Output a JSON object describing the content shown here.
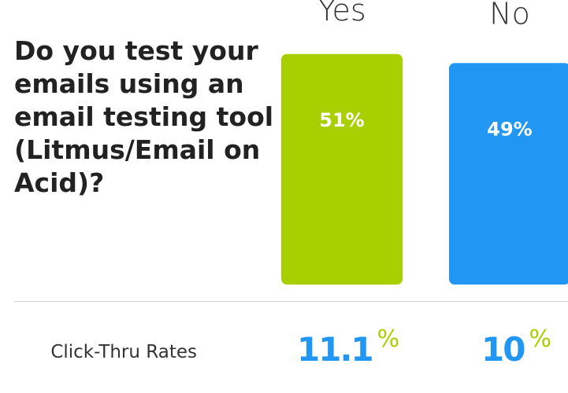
{
  "question": "Do you test your emails using an email testing tool (Litmus/Email on Acid)?",
  "colors": {
    "yes": "#a8d000",
    "no": "#2196f3",
    "question_text": "#222222",
    "metric_value": "#2196f3"
  },
  "chart_data": {
    "type": "bar",
    "categories": [
      "Yes",
      "No"
    ],
    "values": [
      51,
      49
    ],
    "value_labels": [
      "51%",
      "49%"
    ],
    "colors": [
      "#a8d000",
      "#2196f3"
    ],
    "ylim": [
      0,
      100
    ],
    "title": "",
    "xlabel": "",
    "ylabel": "",
    "grid": false
  },
  "metrics": {
    "label": "Click-Thru Rates",
    "items": [
      {
        "category": "Yes",
        "value": "11.1",
        "unit": "%",
        "unit_color": "#a8d000"
      },
      {
        "category": "No",
        "value": "10",
        "unit": "%",
        "unit_color": "#a8d000"
      }
    ]
  }
}
